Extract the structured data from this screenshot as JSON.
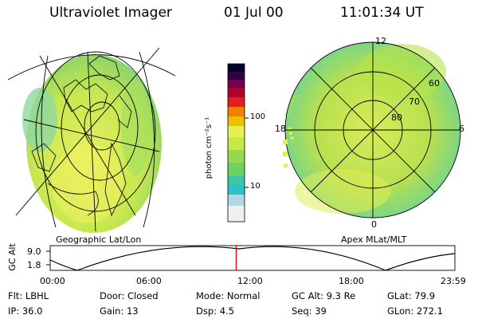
{
  "header": {
    "instrument": "Ultraviolet Imager",
    "date": "01 Jul 00",
    "time": "11:01:34 UT"
  },
  "left_map": {
    "caption": "Geographic Lat/Lon"
  },
  "right_map": {
    "caption": "Apex MLat/MLT",
    "mlt_labels": [
      "12",
      "18",
      "6",
      "0"
    ],
    "mlat_labels": [
      "60",
      "70",
      "80"
    ]
  },
  "colorbar": {
    "unit_label": "photon cm⁻²s⁻¹",
    "ticks": [
      "100",
      "10"
    ]
  },
  "altitude_plot": {
    "ylabel": "GC Alt",
    "yticks": [
      "9.0",
      "1.8"
    ],
    "xticks": [
      "00:00",
      "06:00",
      "12:00",
      "18:00",
      "23:59"
    ],
    "current_time_hours": 11.03
  },
  "footer": {
    "row1": [
      {
        "label": "Flt:",
        "value": "LBHL"
      },
      {
        "label": "Door:",
        "value": "Closed"
      },
      {
        "label": "Mode:",
        "value": "Normal"
      },
      {
        "label": "GC Alt:",
        "value": "9.3 Re"
      },
      {
        "label": "GLat:",
        "value": "79.9"
      }
    ],
    "row2": [
      {
        "label": "IP:",
        "value": "36.0"
      },
      {
        "label": "Gain:",
        "value": "13"
      },
      {
        "label": "Dsp:",
        "value": "4.5"
      },
      {
        "label": "Seq:",
        "value": "39"
      },
      {
        "label": "GLon:",
        "value": "272.1"
      }
    ]
  },
  "colors": {
    "palette": [
      "#ffffff",
      "#d8d8e8",
      "#40c8c8",
      "#00c8c8",
      "#60d040",
      "#a8e040",
      "#e0f050",
      "#f0e000",
      "#f08000",
      "#e02020",
      "#c00040",
      "#600060",
      "#000040"
    ]
  }
}
